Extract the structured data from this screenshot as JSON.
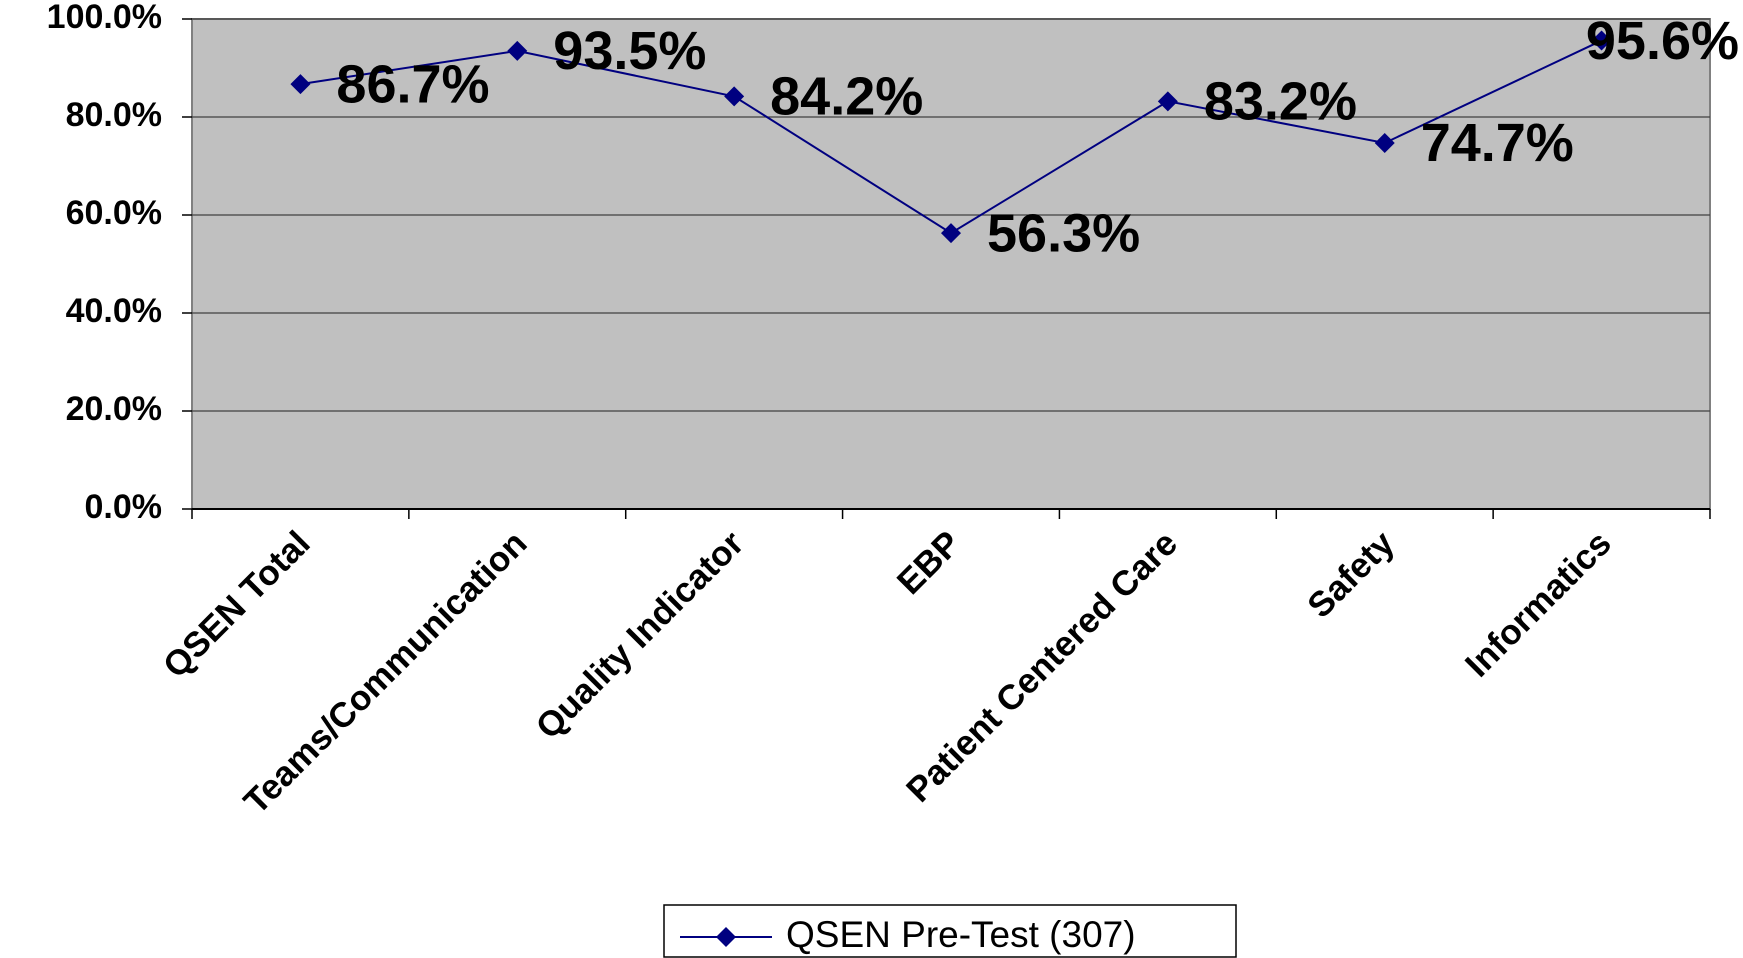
{
  "chart_data": {
    "type": "line",
    "categories": [
      "QSEN Total",
      "Teams/Communication",
      "Quality Indicator",
      "EBP",
      "Patient Centered Care",
      "Safety",
      "Informatics"
    ],
    "series": [
      {
        "name": "QSEN Pre-Test (307)",
        "color": "#000080",
        "values": [
          86.7,
          93.5,
          84.2,
          56.3,
          83.2,
          74.7,
          95.6
        ],
        "value_labels": [
          "86.7%",
          "93.5%",
          "84.2%",
          "56.3%",
          "83.2%",
          "74.7%",
          "95.6%"
        ]
      }
    ],
    "ylim": [
      0,
      100
    ],
    "yticks": [
      {
        "value": 0,
        "label": "0.0%"
      },
      {
        "value": 20,
        "label": "20.0%"
      },
      {
        "value": 40,
        "label": "40.0%"
      },
      {
        "value": 60,
        "label": "60.0%"
      },
      {
        "value": 80,
        "label": "80.0%"
      },
      {
        "value": 100,
        "label": "100.0%"
      }
    ],
    "grid": true,
    "legend": "bottom"
  }
}
